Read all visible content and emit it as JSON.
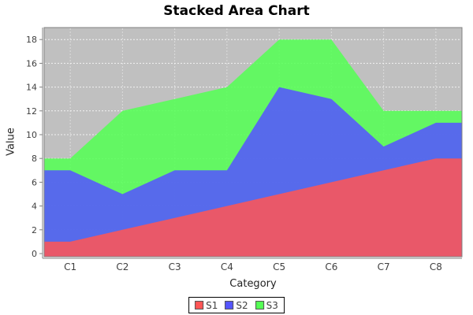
{
  "title": "Stacked Area Chart",
  "chart_data": {
    "type": "area",
    "stacked": true,
    "title": "Stacked Area Chart",
    "xlabel": "Category",
    "ylabel": "Value",
    "categories": [
      "C1",
      "C2",
      "C3",
      "C4",
      "C5",
      "C6",
      "C7",
      "C8"
    ],
    "series": [
      {
        "name": "S1",
        "color": "#FF5555",
        "values": [
          1,
          2,
          3,
          4,
          5,
          6,
          7,
          8
        ]
      },
      {
        "name": "S2",
        "color": "#5555FF",
        "values": [
          6,
          3,
          4,
          3,
          9,
          7,
          2,
          3
        ]
      },
      {
        "name": "S3",
        "color": "#55FF55",
        "values": [
          1,
          7,
          6,
          7,
          4,
          5,
          3,
          1
        ]
      }
    ],
    "cumulative_totals": [
      8,
      12,
      13,
      14,
      18,
      18,
      12,
      12
    ],
    "ylim": [
      0,
      19
    ],
    "yticks": [
      0,
      2,
      4,
      6,
      8,
      10,
      12,
      14,
      16,
      18
    ],
    "grid": true,
    "legend_position": "bottom",
    "plot_background": "#C0C0C0",
    "gridline_color": "#FFFFFF",
    "axis_color": "#808080",
    "tick_label_color": "#3f3f3f",
    "area_opacity": 0.87
  }
}
